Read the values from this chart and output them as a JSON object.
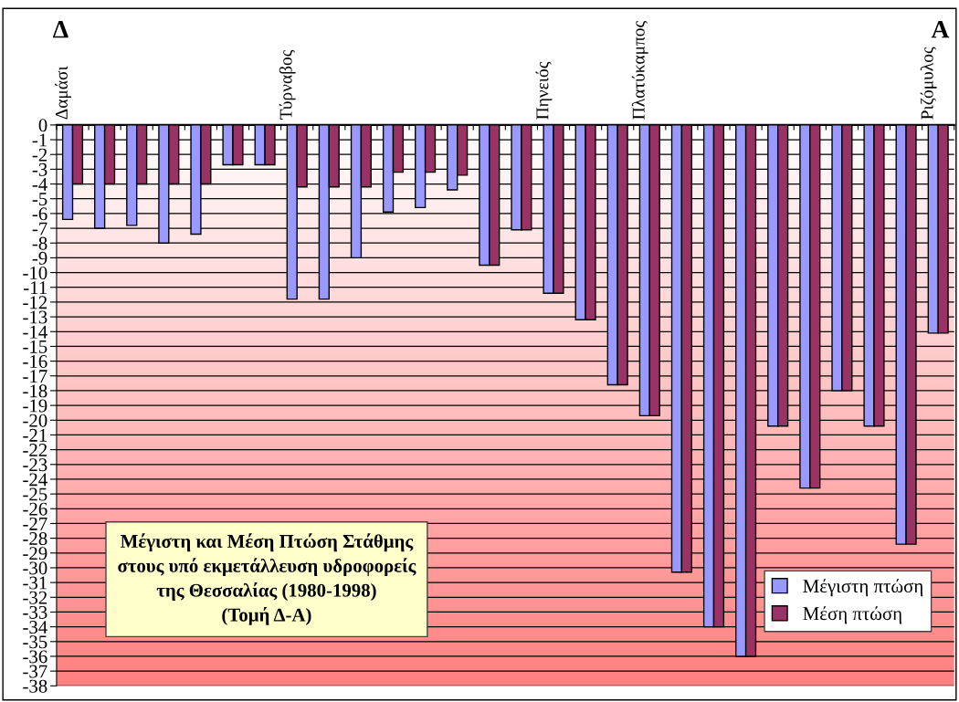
{
  "chart_data": {
    "type": "bar",
    "title": "Μέγιστη και Μέση Πτώση Στάθμης\nστους υπό εκμετάλλευση υδροφορείς\nτης Θεσσαλίας (1980-1998)\n(Τομή Δ-Α)",
    "categories": [
      "Δαμάσι",
      null,
      null,
      null,
      null,
      null,
      null,
      "Τύρναβος",
      null,
      null,
      null,
      null,
      null,
      null,
      null,
      "Πηνειός",
      null,
      null,
      "Πλατύκαμπος",
      null,
      null,
      null,
      null,
      null,
      null,
      null,
      null,
      "Ριζόμυλος"
    ],
    "series": [
      {
        "name": "Μέγιστη πτώση",
        "color": "#9999ff",
        "values": [
          -6.4,
          -7.0,
          -6.8,
          -8.0,
          -7.4,
          -2.7,
          -2.7,
          -11.8,
          -11.8,
          -9.0,
          -5.9,
          -5.6,
          -4.4,
          -9.5,
          -7.1,
          -11.4,
          -13.2,
          -17.6,
          -19.7,
          -30.3,
          -34.0,
          -36.0,
          -20.4,
          -24.6,
          -18.0,
          -20.4,
          -28.4,
          -14.1
        ]
      },
      {
        "name": "Μέση πτώση",
        "color": "#993366",
        "values": [
          -4.0,
          -4.0,
          -4.0,
          -4.0,
          -4.0,
          -2.7,
          -2.7,
          -4.2,
          -4.2,
          -4.2,
          -3.2,
          -3.2,
          -3.4,
          -9.5,
          -7.1,
          -11.4,
          -13.2,
          -17.6,
          -19.7,
          -30.3,
          -34.0,
          -36.0,
          -20.4,
          -24.6,
          -18.0,
          -20.4,
          -28.4,
          -14.1
        ]
      }
    ],
    "ylim": [
      -38,
      0
    ],
    "yticks": [
      0,
      -1,
      -2,
      -3,
      -4,
      -5,
      -6,
      -7,
      -8,
      -9,
      -10,
      -11,
      -12,
      -13,
      -14,
      -15,
      -16,
      -17,
      -18,
      -19,
      -20,
      -21,
      -22,
      -23,
      -24,
      -25,
      -26,
      -27,
      -28,
      -29,
      -30,
      -31,
      -32,
      -33,
      -34,
      -35,
      -36,
      -37,
      -38
    ],
    "grid": "y",
    "legend": "bottom right",
    "annotations": [
      "Δ",
      "Α"
    ]
  }
}
